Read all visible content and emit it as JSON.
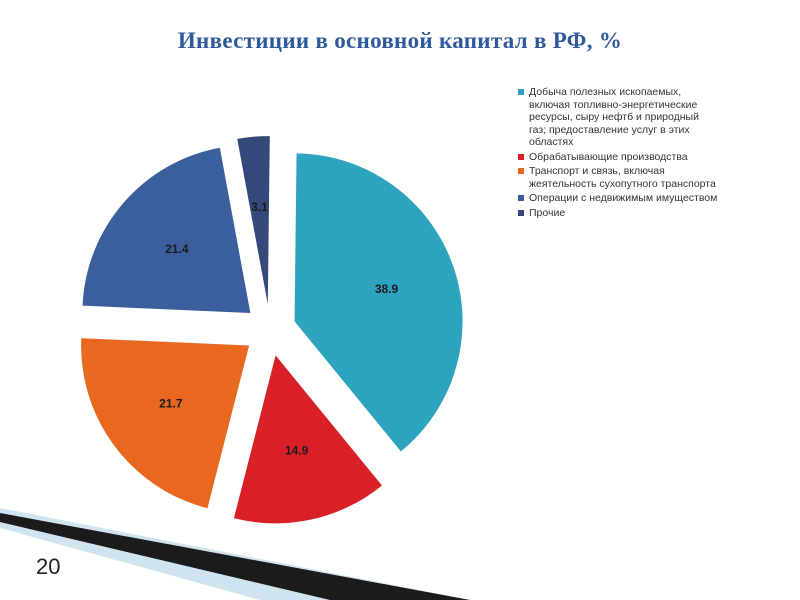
{
  "slide": {
    "title": "Инвестиции в основной капитал в РФ, %",
    "page_number": "20"
  },
  "chart_data": {
    "type": "pie",
    "title": "",
    "exploded": true,
    "legend_position": "right",
    "data_labels": true,
    "slices": [
      {
        "label": " Добыча полезных ископаемых,\nвключая топливно-энергетические\nресурсы, сыру нефтб и природный\nгаз; предоставление услуг в этих\nобластях",
        "value": 38.9,
        "color": "#2ea3c0"
      },
      {
        "label": " Обрабатывающие производства",
        "value": 14.9,
        "color": "#d92027"
      },
      {
        "label": " Транспорт и связь, включая\nжеятельность сухопутного транспорта",
        "value": 21.7,
        "color": "#e8681f"
      },
      {
        "label": " Операции с недвижимым имуществом",
        "value": 21.4,
        "color": "#3a5f9c"
      },
      {
        "label": "Прочие",
        "value": 3.1,
        "color": "#34497a"
      }
    ]
  }
}
